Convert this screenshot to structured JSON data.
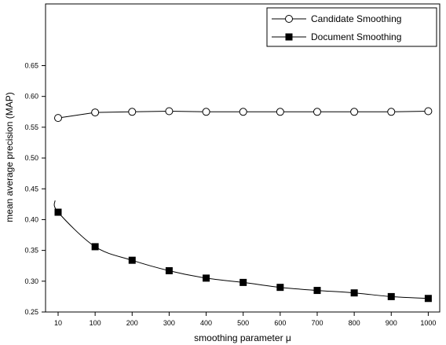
{
  "chart_data": {
    "type": "line",
    "xlabel": "smoothing parameter μ",
    "ylabel": "mean average precision (MAP)",
    "x_ticks": [
      10,
      100,
      200,
      300,
      400,
      500,
      600,
      700,
      800,
      900,
      1000
    ],
    "y_ticks": [
      0.25,
      0.3,
      0.35,
      0.4,
      0.45,
      0.5,
      0.55,
      0.6,
      0.65
    ],
    "y_tick_labels": [
      "0.25",
      "0.30",
      "0.35",
      "0.40",
      "0.45",
      "0.50",
      "0.55",
      "0.60",
      "0.65"
    ],
    "xlim": [
      10,
      1000
    ],
    "ylim": [
      0.25,
      0.65
    ],
    "grid": false,
    "legend_position": "top-right",
    "series": [
      {
        "name": "Candidate Smoothing",
        "marker": "open-circle",
        "x": [
          10,
          100,
          200,
          300,
          400,
          500,
          600,
          700,
          800,
          900,
          1000
        ],
        "values": [
          0.565,
          0.574,
          0.575,
          0.576,
          0.575,
          0.575,
          0.575,
          0.575,
          0.575,
          0.575,
          0.576
        ]
      },
      {
        "name": "Document Smoothing",
        "marker": "filled-square",
        "x": [
          10,
          100,
          200,
          300,
          400,
          500,
          600,
          700,
          800,
          900,
          1000
        ],
        "values": [
          0.412,
          0.356,
          0.334,
          0.317,
          0.305,
          0.298,
          0.29,
          0.285,
          0.281,
          0.275,
          0.272
        ]
      }
    ],
    "curve_start_value": 0.431
  }
}
